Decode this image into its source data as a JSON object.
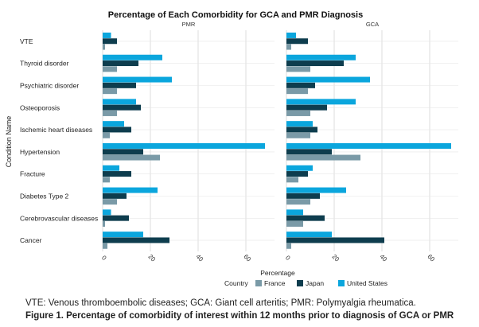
{
  "chart_data": {
    "type": "bar",
    "orientation": "horizontal",
    "title": "Percentage of Each Comorbidity for GCA and PMR Diagnosis",
    "xlabel": "Percentage",
    "ylabel": "Condition Name",
    "xlim": [
      0,
      72
    ],
    "xticks": [
      "0",
      "20",
      "40",
      "60"
    ],
    "xtick_values": [
      0,
      20,
      40,
      60
    ],
    "grid": true,
    "legend_title": "Country",
    "legend_position": "bottom",
    "categories": [
      "VTE",
      "Thyroid disorder",
      "Psychiatric disorder",
      "Osteoporosis",
      "Ischemic heart diseases",
      "Hypertension",
      "Fracture",
      "Diabetes Type 2",
      "Cerebrovascular diseases",
      "Cancer"
    ],
    "colors": {
      "France": "#7a9aa7",
      "Japan": "#0e3d4e",
      "United States": "#0ba6dd"
    },
    "panels": [
      {
        "name": "PMR",
        "series": [
          {
            "name": "United States",
            "values": [
              3.5,
              25,
              29,
              14,
              9,
              68,
              7,
              23,
              3.5,
              17
            ]
          },
          {
            "name": "Japan",
            "values": [
              6,
              15,
              14,
              16,
              12,
              17,
              12,
              10,
              11,
              28
            ]
          },
          {
            "name": "France",
            "values": [
              1,
              6,
              6,
              6,
              3,
              24,
              3,
              6,
              1,
              2
            ]
          }
        ]
      },
      {
        "name": "GCA",
        "series": [
          {
            "name": "United States",
            "values": [
              4,
              29,
              35,
              29,
              11,
              69,
              11,
              25,
              7,
              19
            ]
          },
          {
            "name": "Japan",
            "values": [
              9,
              24,
              12,
              17,
              13,
              19,
              9,
              14,
              16,
              41
            ]
          },
          {
            "name": "France",
            "values": [
              2,
              10,
              9,
              10,
              10,
              31,
              5,
              10,
              7,
              2
            ]
          }
        ]
      }
    ]
  },
  "captions": {
    "line1": "VTE: Venous thromboembolic diseases; GCA: Giant cell arteritis; PMR: Polymyalgia rheumatica.",
    "line2": "Figure 1. Percentage of comorbidity of interest within 12 months prior to diagnosis of GCA or PMR"
  }
}
